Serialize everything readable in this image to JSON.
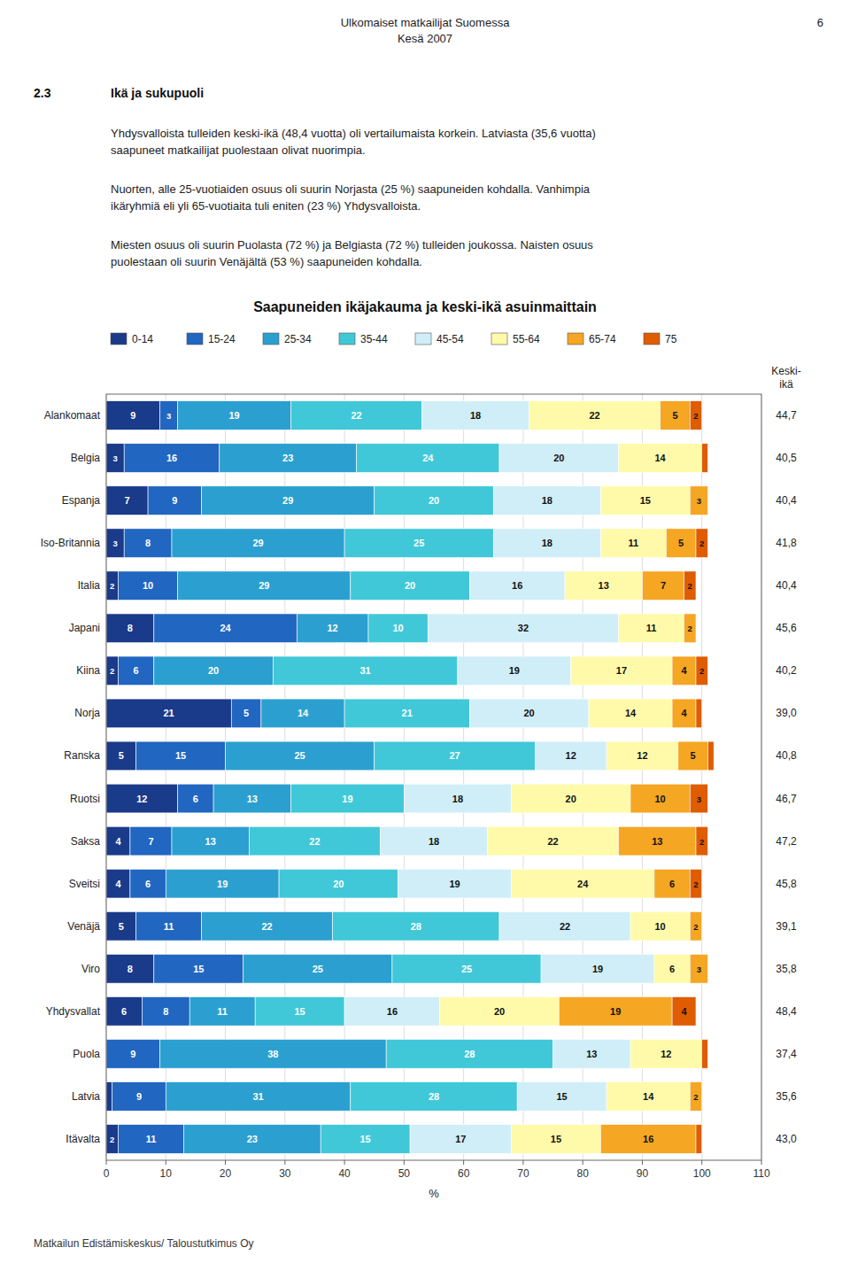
{
  "page_title": "Ulkomaiset matkailijat Suomessa",
  "page_subtitle": "Kesä 2007",
  "page_number": "6",
  "section": "2.3",
  "section_title": "Ikä ja sukupuoli",
  "body_paragraphs": [
    "Yhdysvalloista tulleiden keski-ikä (48,4 vuotta) oli vertailumaista korkein. Latviasta (35,6 vuotta)\nsaapuneet matkailijat puolestaan olivat nuorimpia.",
    "Nuorten, alle 25-vuotiaiden osuus oli suurin Norjasta (25 %) saapuneiden kohdalla. Vanhimpia\nikäryhmiä eli yli 65-vuotiaita tuli eniten (23 %) Yhdysvalloista.",
    "Miesten osuus oli suurin Puolasta (72 %) ja Belgiasta (72 %) tulleiden joukossa. Naisten osuus\npuolestaan oli suurin Venäjältä (53 %) saapuneiden kohdalla."
  ],
  "footer": "Matkailun Edistämiskeskus/ Taloustutkimus Oy",
  "chart_data": {
    "type": "bar",
    "orientation": "horizontal",
    "stacked": true,
    "data_labels": true,
    "grid": true,
    "legend": "top",
    "title": "Saapuneiden ikäjakauma ja keski-ikä asuinmaittain",
    "xlabel": "%",
    "xlim": [
      0,
      110
    ],
    "xticks": [
      0,
      10,
      20,
      30,
      40,
      50,
      60,
      70,
      80,
      90,
      100,
      110
    ],
    "categories": [
      "Alankomaat",
      "Belgia",
      "Espanja",
      "Iso-Britannia",
      "Italia",
      "Japani",
      "Kiina",
      "Norja",
      "Ranska",
      "Ruotsi",
      "Saksa",
      "Sveitsi",
      "Venäjä",
      "Viro",
      "Yhdysvallat",
      "Puola",
      "Latvia",
      "Itävalta"
    ],
    "series": [
      {
        "name": "0-14",
        "color": "#1a3a8a",
        "values": [
          9,
          3,
          7,
          3,
          2,
          8,
          2,
          21,
          5,
          12,
          4,
          4,
          5,
          8,
          6,
          0,
          1,
          2
        ],
        "value_labels": [
          "9",
          "3",
          "7",
          "3",
          "2",
          "8",
          "2",
          "21",
          "5",
          "12",
          "4",
          "4",
          "5",
          "8",
          "6",
          null,
          null,
          "2"
        ]
      },
      {
        "name": "15-24",
        "color": "#2166c0",
        "values": [
          3,
          16,
          9,
          8,
          10,
          24,
          6,
          5,
          15,
          6,
          7,
          6,
          11,
          15,
          8,
          9,
          9,
          11
        ],
        "value_labels": [
          "3",
          "16",
          "9",
          "8",
          "10",
          "24",
          "6",
          "5",
          "15",
          "6",
          "7",
          "6",
          "11",
          "15",
          "8",
          "9",
          "9",
          "11"
        ]
      },
      {
        "name": "25-34",
        "color": "#2ba0d0",
        "values": [
          19,
          23,
          29,
          29,
          29,
          12,
          20,
          14,
          25,
          13,
          13,
          19,
          22,
          25,
          11,
          38,
          31,
          23
        ],
        "value_labels": [
          "19",
          "23",
          "29",
          "29",
          "29",
          "12",
          "20",
          "14",
          "25",
          "13",
          "13",
          "19",
          "22",
          "25",
          "11",
          "38",
          "31",
          "23"
        ]
      },
      {
        "name": "35-44",
        "color": "#40c8d8",
        "values": [
          22,
          24,
          20,
          25,
          20,
          10,
          31,
          21,
          27,
          19,
          22,
          20,
          28,
          25,
          15,
          28,
          28,
          15
        ],
        "value_labels": [
          "22",
          "24",
          "20",
          "25",
          "20",
          "10",
          "31",
          "21",
          "27",
          "19",
          "22",
          "20",
          "28",
          "25",
          "15",
          "28",
          "28",
          "15"
        ]
      },
      {
        "name": "45-54",
        "color": "#d0eef8",
        "values": [
          18,
          20,
          18,
          18,
          16,
          32,
          19,
          20,
          12,
          18,
          18,
          19,
          22,
          19,
          16,
          13,
          15,
          17
        ],
        "value_labels": [
          "18",
          "20",
          "18",
          "18",
          "16",
          "32",
          "19",
          "20",
          "12",
          "18",
          "18",
          "19",
          "22",
          "19",
          "16",
          "13",
          "15",
          "17"
        ]
      },
      {
        "name": "55-64",
        "color": "#fffaaa",
        "values": [
          22,
          14,
          15,
          11,
          13,
          11,
          17,
          14,
          12,
          20,
          22,
          24,
          10,
          6,
          20,
          12,
          14,
          15
        ],
        "value_labels": [
          "22",
          "14",
          "15",
          "11",
          "13",
          "11",
          "17",
          "14",
          "12",
          "20",
          "22",
          "24",
          "10",
          "6",
          "20",
          "12",
          "14",
          "15"
        ]
      },
      {
        "name": "65-74",
        "color": "#f5a623",
        "values": [
          5,
          0,
          3,
          5,
          7,
          2,
          4,
          4,
          5,
          10,
          13,
          6,
          2,
          3,
          19,
          0,
          2,
          16
        ],
        "value_labels": [
          "5",
          null,
          "3",
          "5",
          "7",
          "2",
          "4",
          "4",
          "5",
          "10",
          "13",
          "6",
          "2",
          "3",
          "19",
          null,
          "2",
          "16"
        ]
      },
      {
        "name": "75",
        "color": "#e05c00",
        "values": [
          2,
          1,
          0,
          2,
          2,
          0,
          2,
          1,
          1,
          3,
          2,
          2,
          0,
          0,
          4,
          1,
          0,
          1
        ],
        "value_labels": [
          "2",
          null,
          null,
          "2",
          "2",
          null,
          "2",
          null,
          null,
          "3",
          "2",
          "2",
          null,
          null,
          "4",
          null,
          null,
          null
        ]
      }
    ],
    "mean_age_title": "Keski-\nikä",
    "mean_ages": [
      {
        "value": 44.7,
        "label": "44,7"
      },
      {
        "value": 40.5,
        "label": "40,5"
      },
      {
        "value": 40.4,
        "label": "40,4"
      },
      {
        "value": 41.8,
        "label": "41,8"
      },
      {
        "value": 40.4,
        "label": "40,4"
      },
      {
        "value": 45.6,
        "label": "45,6"
      },
      {
        "value": 40.2,
        "label": "40,2"
      },
      {
        "value": 39.0,
        "label": "39,0"
      },
      {
        "value": 40.8,
        "label": "40,8"
      },
      {
        "value": 46.7,
        "label": "46,7"
      },
      {
        "value": 47.2,
        "label": "47,2"
      },
      {
        "value": 45.8,
        "label": "45,8"
      },
      {
        "value": 39.1,
        "label": "39,1"
      },
      {
        "value": 35.8,
        "label": "35,8"
      },
      {
        "value": 48.4,
        "label": "48,4"
      },
      {
        "value": 37.4,
        "label": "37,4"
      },
      {
        "value": 35.6,
        "label": "35,6"
      },
      {
        "value": 43.0,
        "label": "43,0"
      }
    ]
  }
}
